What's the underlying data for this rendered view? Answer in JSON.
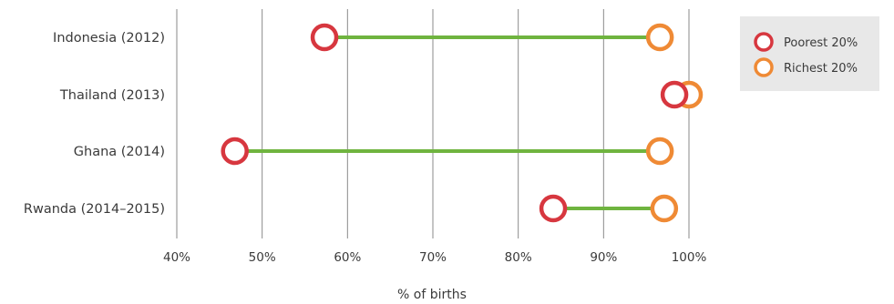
{
  "chart_data": {
    "type": "dumbbell",
    "title": "",
    "xlabel": "% of births",
    "ylabel": "",
    "xlim": [
      40,
      100
    ],
    "x_ticks": [
      "40%",
      "50%",
      "60%",
      "70%",
      "80%",
      "90%",
      "100%"
    ],
    "x_tick_values": [
      40,
      50,
      60,
      70,
      80,
      90,
      100
    ],
    "categories": [
      "Indonesia (2012)",
      "Thailand (2013)",
      "Ghana (2014)",
      "Rwanda (2014–2015)"
    ],
    "series": [
      {
        "name": "Poorest 20%",
        "values": [
          57.3,
          98.3,
          46.8,
          84.1
        ],
        "color": "#d7373f"
      },
      {
        "name": "Richest 20%",
        "values": [
          96.6,
          100.0,
          96.6,
          97.1
        ],
        "color": "#ef8a35"
      }
    ],
    "connector_color": "#6fb43f",
    "grid": "vertical",
    "legend": {
      "placement": "top-right",
      "background": "#e8e8e8"
    }
  }
}
